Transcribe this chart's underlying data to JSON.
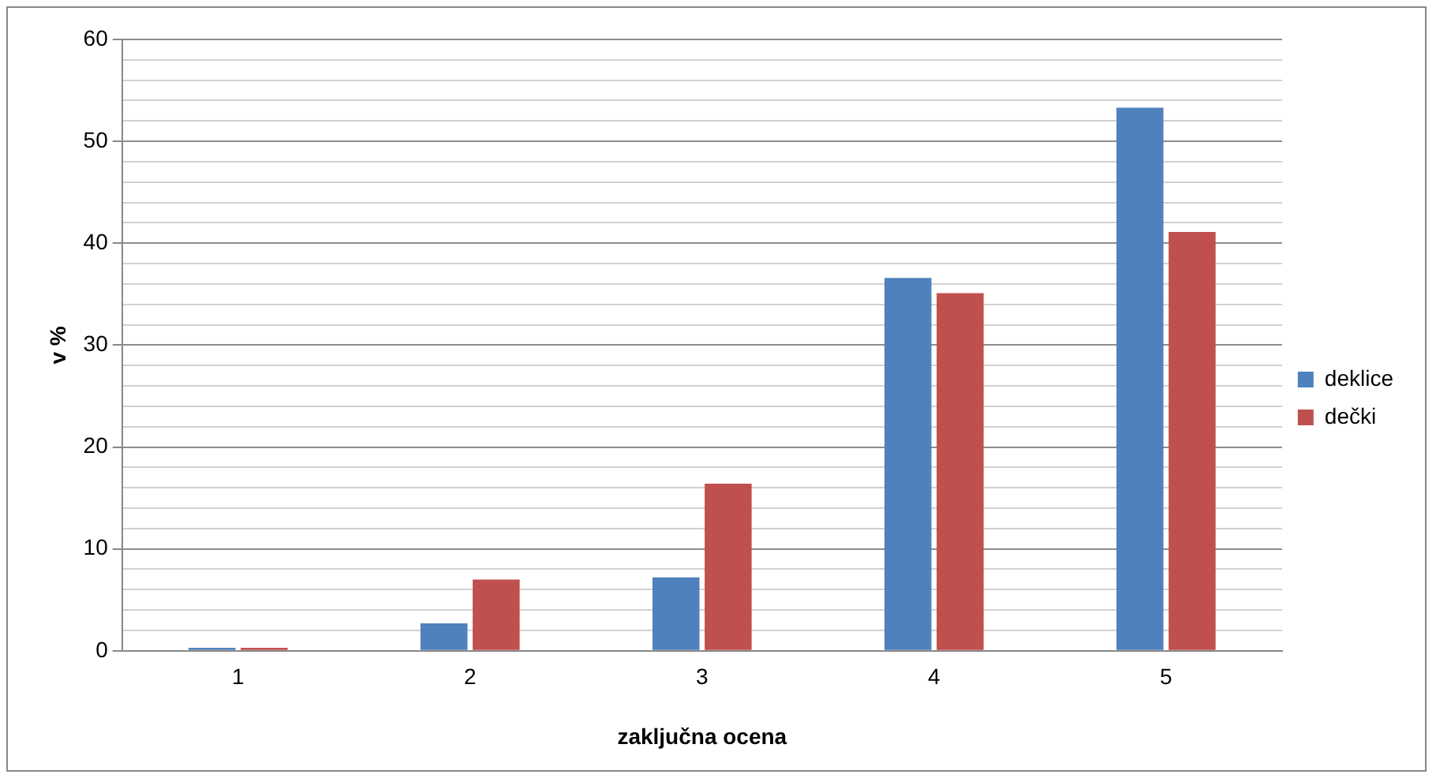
{
  "chart_data": {
    "type": "bar",
    "xlabel": "zaključna ocena",
    "ylabel": "v %",
    "categories": [
      "1",
      "2",
      "3",
      "4",
      "5"
    ],
    "series": [
      {
        "name": "deklice",
        "color": "#4f81bd",
        "values": [
          0.3,
          2.7,
          7.2,
          36.6,
          53.3
        ]
      },
      {
        "name": "dečki",
        "color": "#c0504d",
        "values": [
          0.3,
          7.0,
          16.4,
          35.1,
          41.1
        ]
      }
    ],
    "ylim": [
      0,
      60
    ],
    "yticks": [
      0,
      {
        "value": 2,
        "label": null
      },
      {
        "value": 4,
        "label": null
      },
      {
        "value": 6,
        "label": null
      },
      {
        "value": 8,
        "label": null
      },
      10,
      {
        "value": 12,
        "label": null
      },
      {
        "value": 14,
        "label": null
      },
      {
        "value": 16,
        "label": null
      },
      {
        "value": 18,
        "label": null
      },
      20,
      {
        "value": 22,
        "label": null
      },
      {
        "value": 24,
        "label": null
      },
      {
        "value": 26,
        "label": null
      },
      {
        "value": 28,
        "label": null
      },
      30,
      {
        "value": 32,
        "label": null
      },
      {
        "value": 34,
        "label": null
      },
      {
        "value": 36,
        "label": null
      },
      {
        "value": 38,
        "label": null
      },
      40,
      {
        "value": 42,
        "label": null
      },
      {
        "value": 44,
        "label": null
      },
      {
        "value": 46,
        "label": null
      },
      {
        "value": 48,
        "label": null
      },
      50,
      {
        "value": 52,
        "label": null
      },
      {
        "value": 54,
        "label": null
      },
      {
        "value": 56,
        "label": null
      },
      {
        "value": 58,
        "label": null
      },
      60
    ],
    "grid": "y",
    "legend": "right"
  }
}
